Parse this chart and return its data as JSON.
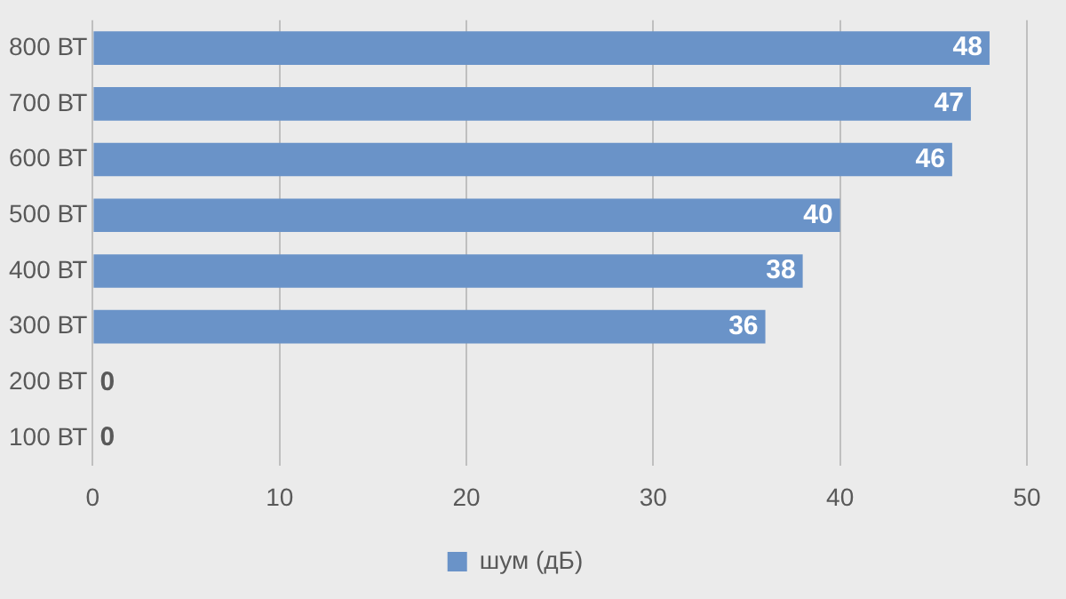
{
  "chart_data": {
    "type": "bar",
    "orientation": "horizontal",
    "categories": [
      "800 ВТ",
      "700 ВТ",
      "600 ВТ",
      "500 ВТ",
      "400 ВТ",
      "300 ВТ",
      "200 ВТ",
      "100 ВТ"
    ],
    "series": [
      {
        "name": "шум (дБ)",
        "color": "#6a93c8",
        "values": [
          48,
          47,
          46,
          40,
          38,
          36,
          0,
          0
        ]
      }
    ],
    "xlim": [
      0,
      50
    ],
    "xticks": [
      0,
      10,
      20,
      30,
      40,
      50
    ],
    "grid": "x",
    "legend": "bottom",
    "data_labels": true
  }
}
